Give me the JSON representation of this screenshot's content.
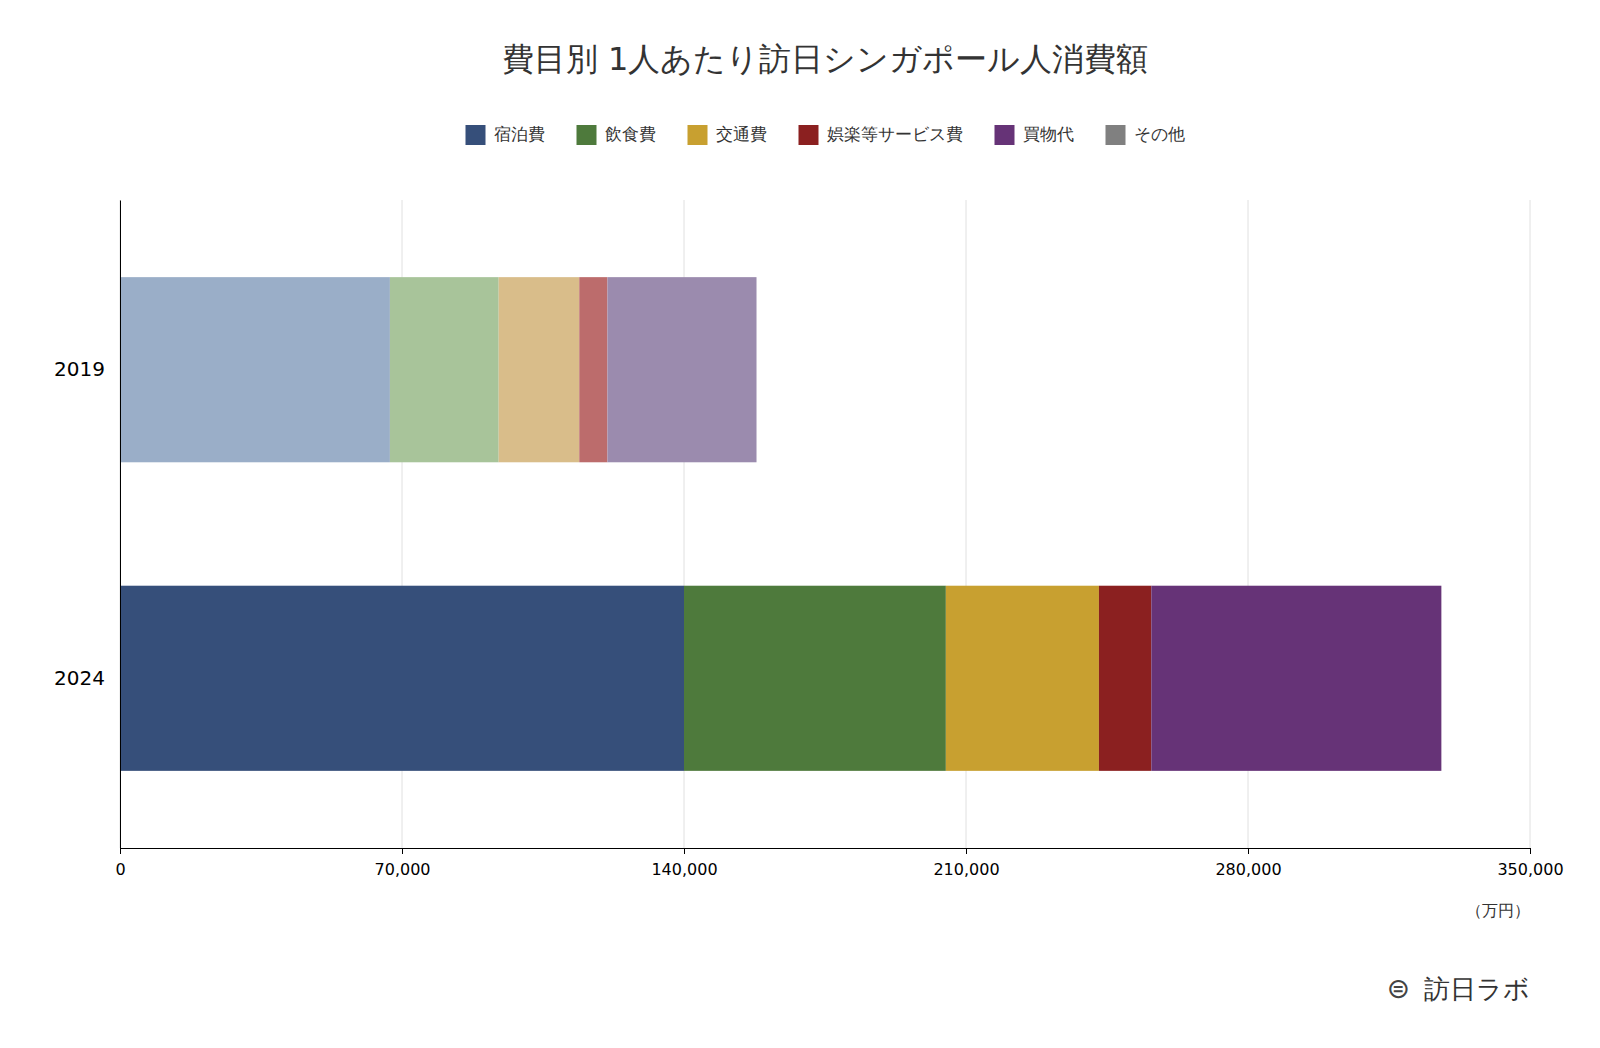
{
  "chart_data": {
    "type": "bar",
    "title": "費目別 1人あたり訪日シンガポール人消費額",
    "orientation": "horizontal",
    "stacked": true,
    "categories": [
      "2024",
      "2019"
    ],
    "series": [
      {
        "name": "宿泊費",
        "color": "#364f7a",
        "colors": [
          "#364f7a",
          "#9AAEC8"
        ],
        "values": [
          140000,
          67000
        ]
      },
      {
        "name": "飲食費",
        "color": "#4e7a3c",
        "colors": [
          "#4e7a3c",
          "#A8C49A"
        ],
        "values": [
          65000,
          27000
        ]
      },
      {
        "name": "交通費",
        "color": "#c8a030",
        "colors": [
          "#c8a030",
          "#D9BD8A"
        ],
        "values": [
          38000,
          20000
        ]
      },
      {
        "name": "娯楽等サービス費",
        "color": "#8B2020",
        "colors": [
          "#8B2020",
          "#BC6C6C"
        ],
        "values": [
          13000,
          7000
        ]
      },
      {
        "name": "買物代",
        "color": "#663377",
        "colors": [
          "#663377",
          "#9B8BAE"
        ],
        "values": [
          72000,
          37000
        ]
      },
      {
        "name": "その他",
        "color": "#808080",
        "colors": [
          "#808080",
          "#A0A0A0"
        ],
        "values": [
          0,
          0
        ]
      }
    ],
    "xlim": [
      0,
      350000
    ],
    "xticks": [
      0,
      {
        "value": 70000,
        "label": "70,000"
      },
      {
        "value": 140000,
        "label": "140,000"
      },
      {
        "value": 210000,
        "label": "210,000"
      },
      {
        "value": 280000,
        "label": "280,000"
      },
      {
        "value": 350000,
        "label": "350,000"
      }
    ],
    "xlabel": "（万円）",
    "grid": true,
    "legend": "top",
    "annotations": [
      "⊜",
      "訪日ラボ"
    ]
  }
}
